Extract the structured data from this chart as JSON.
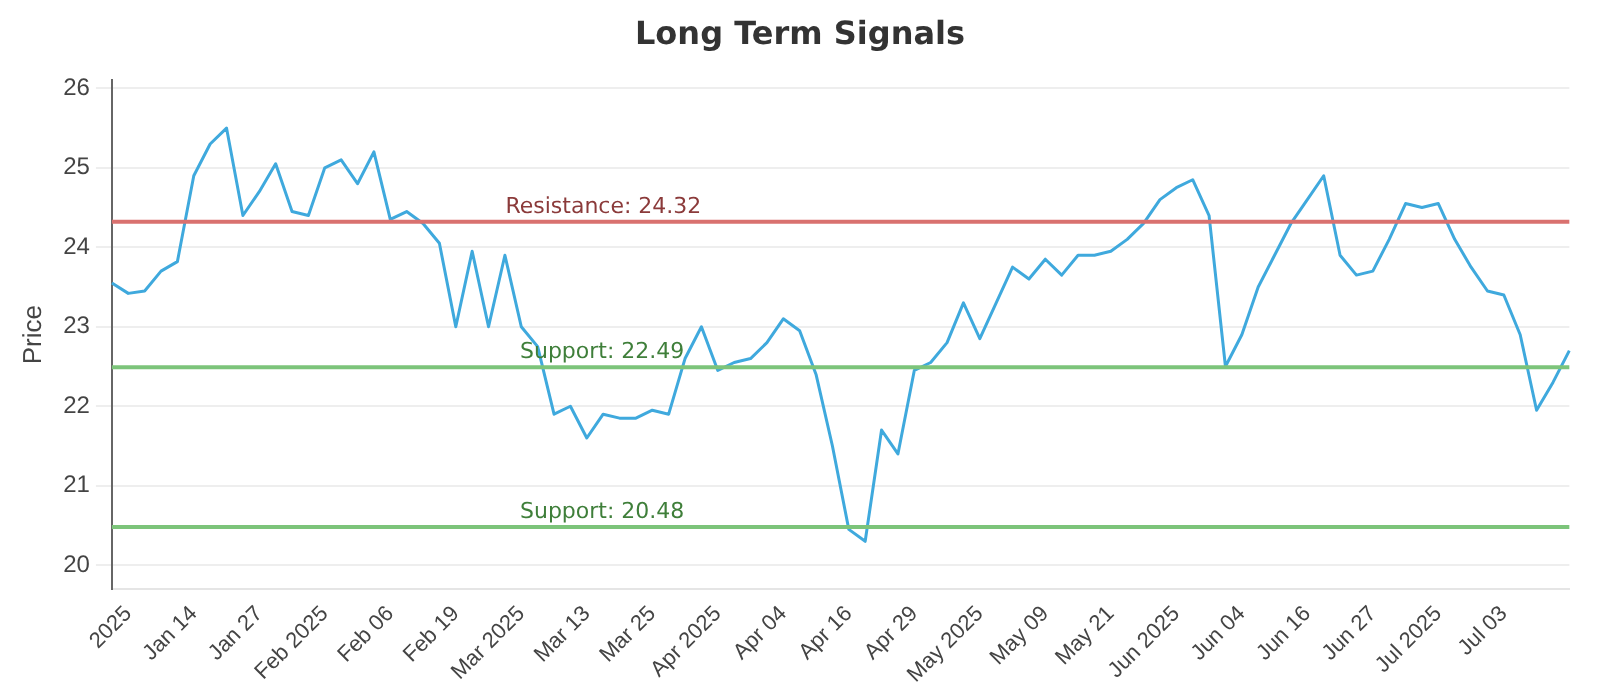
{
  "chart_data": {
    "type": "line",
    "title": "Long Term Signals",
    "ylabel": "Price",
    "categories": [
      null,
      "2025",
      null,
      null,
      null,
      "Jan 14",
      null,
      null,
      null,
      "Jan 27",
      null,
      null,
      null,
      "Feb 2025",
      null,
      null,
      null,
      "Feb 06",
      null,
      null,
      null,
      "Feb 19",
      null,
      null,
      null,
      "Mar 2025",
      null,
      null,
      null,
      "Mar 13",
      null,
      null,
      null,
      "Mar 25",
      null,
      null,
      null,
      "Apr 2025",
      null,
      null,
      null,
      "Apr 04",
      null,
      null,
      null,
      "Apr 16",
      null,
      null,
      null,
      "Apr 29",
      null,
      null,
      null,
      "May 2025",
      null,
      null,
      null,
      "May 09",
      null,
      null,
      null,
      "May 21",
      null,
      null,
      null,
      "Jun 2025",
      null,
      null,
      null,
      "Jun 04",
      null,
      null,
      null,
      "Jun 16",
      null,
      null,
      null,
      "Jun 27",
      null,
      null,
      null,
      "Jul 2025",
      null,
      null,
      null,
      "Jul 03",
      null,
      null,
      null,
      null
    ],
    "series": [
      {
        "color": "#3fa9dd",
        "values": [
          23.55,
          23.42,
          23.45,
          23.7,
          23.82,
          24.9,
          25.3,
          25.5,
          24.4,
          24.7,
          25.05,
          24.45,
          24.4,
          25.0,
          25.1,
          24.8,
          25.2,
          24.35,
          24.45,
          24.3,
          24.05,
          23.0,
          23.95,
          23.0,
          23.9,
          23.0,
          22.75,
          21.9,
          22.0,
          21.6,
          21.9,
          21.85,
          21.85,
          21.95,
          21.9,
          22.6,
          23.0,
          22.45,
          22.55,
          22.6,
          22.8,
          23.1,
          22.95,
          22.4,
          21.5,
          20.45,
          20.3,
          21.7,
          21.4,
          22.45,
          22.55,
          22.8,
          23.3,
          22.85,
          23.3,
          23.75,
          23.6,
          23.85,
          23.65,
          23.9,
          23.9,
          23.95,
          24.1,
          24.3,
          24.6,
          24.75,
          24.85,
          24.4,
          22.5,
          22.9,
          23.5,
          23.9,
          24.3,
          24.6,
          24.9,
          23.9,
          23.65,
          23.7,
          24.1,
          24.55,
          24.5,
          24.55,
          24.1,
          23.75,
          23.45,
          23.4,
          22.9,
          21.95,
          22.3,
          22.7
        ]
      }
    ],
    "ylim": [
      19.7,
      26.1
    ],
    "yticks": [
      20,
      21,
      22,
      23,
      24,
      25,
      26
    ],
    "grid": "y",
    "legend": false,
    "marker": "none",
    "line_style": "solid",
    "ref_lines": [
      {
        "axis": "y",
        "value": 24.32,
        "label": "Resistance: 24.32",
        "color": "#d9716f"
      },
      {
        "axis": "y",
        "value": 22.49,
        "label": "Support: 22.49",
        "color": "#7cc47a"
      },
      {
        "axis": "y",
        "value": 20.48,
        "label": "Support: 20.48",
        "color": "#7cc47a"
      }
    ]
  }
}
